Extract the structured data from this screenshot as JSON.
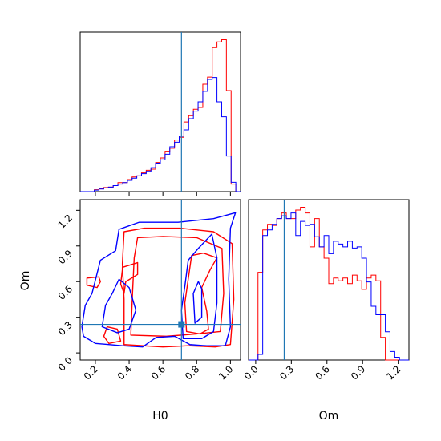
{
  "chart_data": {
    "type": "corner",
    "parameters": [
      "H0",
      "Om"
    ],
    "xlabel": "H0",
    "ylabel": "Om",
    "xlabel_right": "Om",
    "colors": {
      "series_a": "#ff0000",
      "series_b": "#0000ff",
      "truth": "#1f77b4"
    },
    "truth": {
      "H0": 0.71,
      "Om": 0.24
    },
    "H0_ticks": [
      "0.2",
      "0.4",
      "0.6",
      "0.8",
      "1.0"
    ],
    "Om_ticks": [
      "0.0",
      "0.3",
      "0.6",
      "0.9",
      "1.2"
    ],
    "H0_range": [
      0.11,
      1.06
    ],
    "Om_range": [
      -0.06,
      1.29
    ],
    "hist_H0": {
      "edges": [
        0.11,
        1.06
      ],
      "series": [
        {
          "values": [
            0,
            0,
            0,
            0.5,
            0.8,
            1.1,
            1.2,
            1.6,
            2.4,
            2.4,
            3.2,
            3.9,
            4.2,
            5.0,
            5.7,
            6.0,
            7.8,
            9.0,
            10.8,
            11.6,
            13.8,
            14.5,
            18.6,
            20.3,
            22.0,
            22.5,
            28.7,
            30.6,
            38.5,
            40.0,
            40.6,
            27.0,
            2.0,
            0
          ]
        },
        {
          "values": [
            0,
            0,
            0,
            0.4,
            0.7,
            1.0,
            1.2,
            1.6,
            2.0,
            2.4,
            3.0,
            3.6,
            4.2,
            4.8,
            5.4,
            6.4,
            7.6,
            8.5,
            10.0,
            12.0,
            13.2,
            14.8,
            16.5,
            19.5,
            21.5,
            24.0,
            26.8,
            30.0,
            30.5,
            24.0,
            20.0,
            9.5,
            2.5,
            0
          ]
        }
      ]
    },
    "hist_Om": {
      "edges": [
        -0.06,
        1.29
      ],
      "series": [
        {
          "values": [
            0,
            0,
            15.5,
            23.0,
            24.0,
            23.8,
            25.0,
            26.0,
            25.0,
            25.0,
            26.5,
            27.0,
            26.0,
            20.0,
            25.0,
            20.0,
            18.0,
            13.5,
            14.5,
            14.0,
            14.5,
            13.5,
            15.0,
            14.0,
            12.5,
            14.5,
            15.0,
            14.0,
            4.0,
            0,
            0,
            0,
            0,
            0
          ]
        },
        {
          "values": [
            0,
            0,
            1,
            22.0,
            23.0,
            24.0,
            25.0,
            25.5,
            25.0,
            26.0,
            22.0,
            24.5,
            23.8,
            24.0,
            21.8,
            20.0,
            22.0,
            18.8,
            21.0,
            20.5,
            20.0,
            21.0,
            19.8,
            20.0,
            18.0,
            13.8,
            9.5,
            8.0,
            8.0,
            5.0,
            1.5,
            0.5,
            0,
            0
          ]
        }
      ]
    },
    "contours": [
      [
        [
          [
            0.37,
            0.07
          ],
          [
            0.6,
            0.05
          ],
          [
            0.75,
            0.06
          ],
          [
            0.91,
            0.05
          ],
          [
            1.0,
            0.07
          ],
          [
            1.02,
            0.45
          ],
          [
            1.01,
            0.92
          ],
          [
            0.9,
            1.02
          ],
          [
            0.7,
            1.05
          ],
          [
            0.49,
            1.05
          ],
          [
            0.37,
            1.02
          ],
          [
            0.36,
            0.75
          ],
          [
            0.37,
            0.45
          ],
          [
            0.37,
            0.2
          ]
        ],
        [
          [
            0.41,
            0.15
          ],
          [
            0.62,
            0.14
          ],
          [
            0.8,
            0.16
          ],
          [
            0.94,
            0.18
          ],
          [
            0.96,
            0.5
          ],
          [
            0.95,
            0.88
          ],
          [
            0.8,
            0.97
          ],
          [
            0.6,
            0.98
          ],
          [
            0.45,
            0.97
          ],
          [
            0.43,
            0.8
          ],
          [
            0.42,
            0.5
          ]
        ],
        [
          [
            0.28,
            0.08
          ],
          [
            0.35,
            0.1
          ],
          [
            0.33,
            0.2
          ],
          [
            0.27,
            0.22
          ],
          [
            0.25,
            0.14
          ]
        ],
        [
          [
            0.15,
            0.63
          ],
          [
            0.22,
            0.64
          ],
          [
            0.23,
            0.6
          ],
          [
            0.21,
            0.55
          ],
          [
            0.15,
            0.57
          ]
        ],
        [
          [
            0.36,
            0.72
          ],
          [
            0.45,
            0.76
          ],
          [
            0.45,
            0.66
          ],
          [
            0.38,
            0.6
          ],
          [
            0.37,
            0.5
          ],
          [
            0.35,
            0.58
          ],
          [
            0.36,
            0.7
          ]
        ],
        [
          [
            0.74,
            0.18
          ],
          [
            0.82,
            0.16
          ],
          [
            0.87,
            0.2
          ],
          [
            0.86,
            0.35
          ],
          [
            0.83,
            0.55
          ],
          [
            0.88,
            0.7
          ],
          [
            0.92,
            0.8
          ],
          [
            0.84,
            0.84
          ],
          [
            0.77,
            0.82
          ],
          [
            0.75,
            0.62
          ],
          [
            0.73,
            0.42
          ]
        ]
      ],
      [
        [
          [
            0.13,
            0.14
          ],
          [
            0.2,
            0.08
          ],
          [
            0.36,
            0.06
          ],
          [
            0.48,
            0.05
          ],
          [
            0.56,
            0.13
          ],
          [
            0.67,
            0.14
          ],
          [
            0.76,
            0.07
          ],
          [
            0.86,
            0.06
          ],
          [
            0.97,
            0.06
          ],
          [
            1.0,
            0.22
          ],
          [
            0.99,
            0.62
          ],
          [
            1.0,
            1.05
          ],
          [
            1.03,
            1.18
          ],
          [
            0.9,
            1.13
          ],
          [
            0.69,
            1.1
          ],
          [
            0.46,
            1.1
          ],
          [
            0.34,
            1.04
          ],
          [
            0.32,
            0.86
          ],
          [
            0.23,
            0.78
          ],
          [
            0.18,
            0.5
          ],
          [
            0.14,
            0.4
          ],
          [
            0.12,
            0.22
          ]
        ],
        [
          [
            0.24,
            0.22
          ],
          [
            0.33,
            0.17
          ],
          [
            0.4,
            0.2
          ],
          [
            0.44,
            0.36
          ],
          [
            0.4,
            0.55
          ],
          [
            0.34,
            0.62
          ],
          [
            0.3,
            0.5
          ],
          [
            0.26,
            0.4
          ]
        ],
        [
          [
            0.72,
            0.12
          ],
          [
            0.83,
            0.12
          ],
          [
            0.9,
            0.18
          ],
          [
            0.92,
            0.42
          ],
          [
            0.92,
            0.8
          ],
          [
            0.89,
            1.0
          ],
          [
            0.81,
            0.88
          ],
          [
            0.75,
            0.78
          ],
          [
            0.73,
            0.56
          ],
          [
            0.71,
            0.36
          ]
        ],
        [
          [
            0.79,
            0.25
          ],
          [
            0.83,
            0.3
          ],
          [
            0.83,
            0.54
          ],
          [
            0.81,
            0.6
          ],
          [
            0.78,
            0.5
          ]
        ]
      ]
    ]
  }
}
